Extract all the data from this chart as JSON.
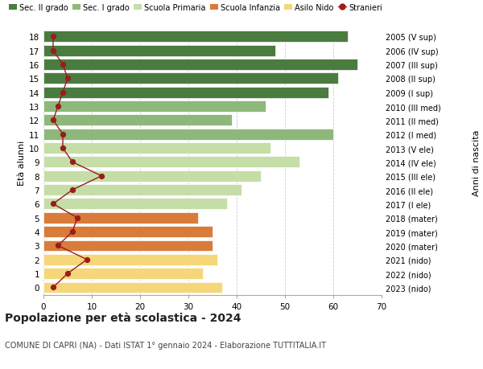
{
  "ages": [
    18,
    17,
    16,
    15,
    14,
    13,
    12,
    11,
    10,
    9,
    8,
    7,
    6,
    5,
    4,
    3,
    2,
    1,
    0
  ],
  "bar_values": [
    63,
    48,
    65,
    61,
    59,
    46,
    39,
    60,
    47,
    53,
    45,
    41,
    38,
    32,
    35,
    35,
    36,
    33,
    37
  ],
  "bar_colors": [
    "#4a7c3f",
    "#4a7c3f",
    "#4a7c3f",
    "#4a7c3f",
    "#4a7c3f",
    "#8db87a",
    "#8db87a",
    "#8db87a",
    "#c5dea8",
    "#c5dea8",
    "#c5dea8",
    "#c5dea8",
    "#c5dea8",
    "#d97b3a",
    "#d97b3a",
    "#d97b3a",
    "#f5d77a",
    "#f5d77a",
    "#f5d77a"
  ],
  "stranieri_values": [
    2,
    2,
    4,
    5,
    4,
    3,
    2,
    4,
    4,
    6,
    12,
    6,
    2,
    7,
    6,
    3,
    9,
    5,
    2
  ],
  "right_labels": [
    "2005 (V sup)",
    "2006 (IV sup)",
    "2007 (III sup)",
    "2008 (II sup)",
    "2009 (I sup)",
    "2010 (III med)",
    "2011 (II med)",
    "2012 (I med)",
    "2013 (V ele)",
    "2014 (IV ele)",
    "2015 (III ele)",
    "2016 (II ele)",
    "2017 (I ele)",
    "2018 (mater)",
    "2019 (mater)",
    "2020 (mater)",
    "2021 (nido)",
    "2022 (nido)",
    "2023 (nido)"
  ],
  "legend_labels": [
    "Sec. II grado",
    "Sec. I grado",
    "Scuola Primaria",
    "Scuola Infanzia",
    "Asilo Nido",
    "Stranieri"
  ],
  "legend_colors": [
    "#4a7c3f",
    "#8db87a",
    "#c5dea8",
    "#d97b3a",
    "#f5d77a",
    "#b22222"
  ],
  "ylabel": "Età alunni",
  "right_ylabel": "Anni di nascita",
  "title": "Popolazione per età scolastica - 2024",
  "subtitle": "COMUNE DI CAPRI (NA) - Dati ISTAT 1° gennaio 2024 - Elaborazione TUTTITALIA.IT",
  "xlim": [
    0,
    70
  ],
  "background_color": "#ffffff",
  "bar_height": 0.8
}
